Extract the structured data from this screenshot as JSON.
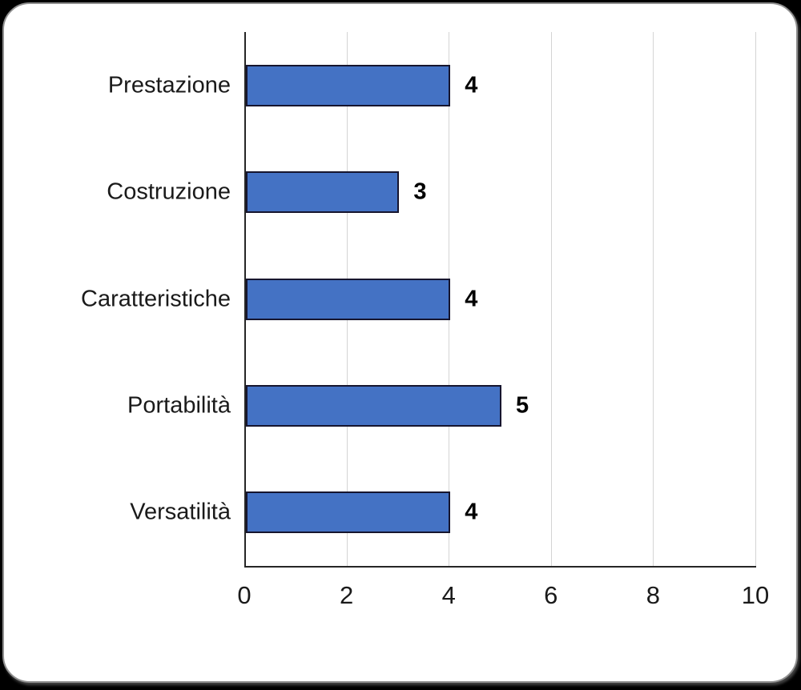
{
  "chart_data": {
    "type": "bar",
    "orientation": "horizontal",
    "title": "",
    "xlabel": "",
    "ylabel": "",
    "categories": [
      "Prestazione",
      "Costruzione",
      "Caratteristiche",
      "Portabilità",
      "Versatilità"
    ],
    "values": [
      4,
      3,
      4,
      5,
      4
    ],
    "data_labels": [
      "4",
      "3",
      "4",
      "5",
      "4"
    ],
    "xlim": [
      0,
      10
    ],
    "xticks": [
      0,
      2,
      4,
      6,
      8,
      10
    ],
    "xtick_labels": [
      "0",
      "2",
      "4",
      "6",
      "8",
      "10"
    ],
    "grid": "vertical-major",
    "legend": "none",
    "colors": {
      "bar_fill": "#4472C4",
      "bar_border": "#16152e",
      "gridline": "#d4d4d4",
      "axis_line": "#262626",
      "label_text": "#1a1a1a",
      "data_label_text": "#000000",
      "plot_background": "#ffffff",
      "page_background": "#000000"
    }
  }
}
